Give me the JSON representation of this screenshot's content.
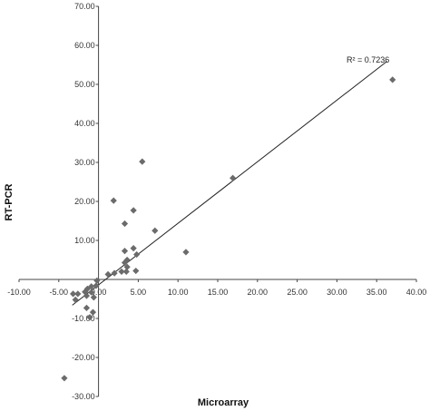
{
  "chart_data": {
    "type": "scatter",
    "xlabel": "Microarray",
    "ylabel": "RT-PCR",
    "xlim": [
      -10,
      40
    ],
    "ylim": [
      -30,
      70
    ],
    "x_ticks": [
      "-10.00",
      "-5.00",
      "0.00",
      "5.00",
      "10.00",
      "15.00",
      "20.00",
      "25.00",
      "30.00",
      "35.00",
      "40.00"
    ],
    "y_ticks": [
      "-30.00",
      "-20.00",
      "-10.00",
      "0.00",
      "10.00",
      "20.00",
      "30.00",
      "40.00",
      "50.00",
      "60.00",
      "70.00"
    ],
    "grid": false,
    "marker": "diamond",
    "marker_color": "#6b6b6b",
    "trendline": {
      "x": [
        -3.3,
        36.3
      ],
      "y": [
        -6.6,
        55.9
      ]
    },
    "annotation": "R² = 0.7236",
    "series": [
      {
        "points": [
          [
            37.0,
            51.2
          ],
          [
            16.9,
            26.0
          ],
          [
            11.0,
            7.0
          ],
          [
            7.1,
            12.5
          ],
          [
            5.5,
            30.2
          ],
          [
            4.4,
            17.7
          ],
          [
            1.9,
            20.2
          ],
          [
            3.3,
            14.3
          ],
          [
            4.4,
            8.0
          ],
          [
            3.3,
            7.3
          ],
          [
            4.8,
            6.4
          ],
          [
            3.6,
            5.0
          ],
          [
            3.3,
            4.3
          ],
          [
            3.6,
            3.2
          ],
          [
            3.5,
            2.0
          ],
          [
            2.9,
            2.0
          ],
          [
            4.7,
            2.2
          ],
          [
            2.0,
            1.6
          ],
          [
            1.2,
            1.3
          ],
          [
            -0.2,
            -0.3
          ],
          [
            -0.3,
            -1.6
          ],
          [
            -0.9,
            -1.8
          ],
          [
            -1.4,
            -2.4
          ],
          [
            -1.7,
            -3.2
          ],
          [
            -2.6,
            -3.7
          ],
          [
            -3.2,
            -3.7
          ],
          [
            -0.9,
            -3.3
          ],
          [
            -1.5,
            -4.2
          ],
          [
            -0.6,
            -4.6
          ],
          [
            -2.9,
            -5.2
          ],
          [
            -1.5,
            -7.3
          ],
          [
            -0.7,
            -8.4
          ],
          [
            -1.1,
            -9.7
          ],
          [
            -4.3,
            -25.3
          ]
        ]
      }
    ]
  }
}
